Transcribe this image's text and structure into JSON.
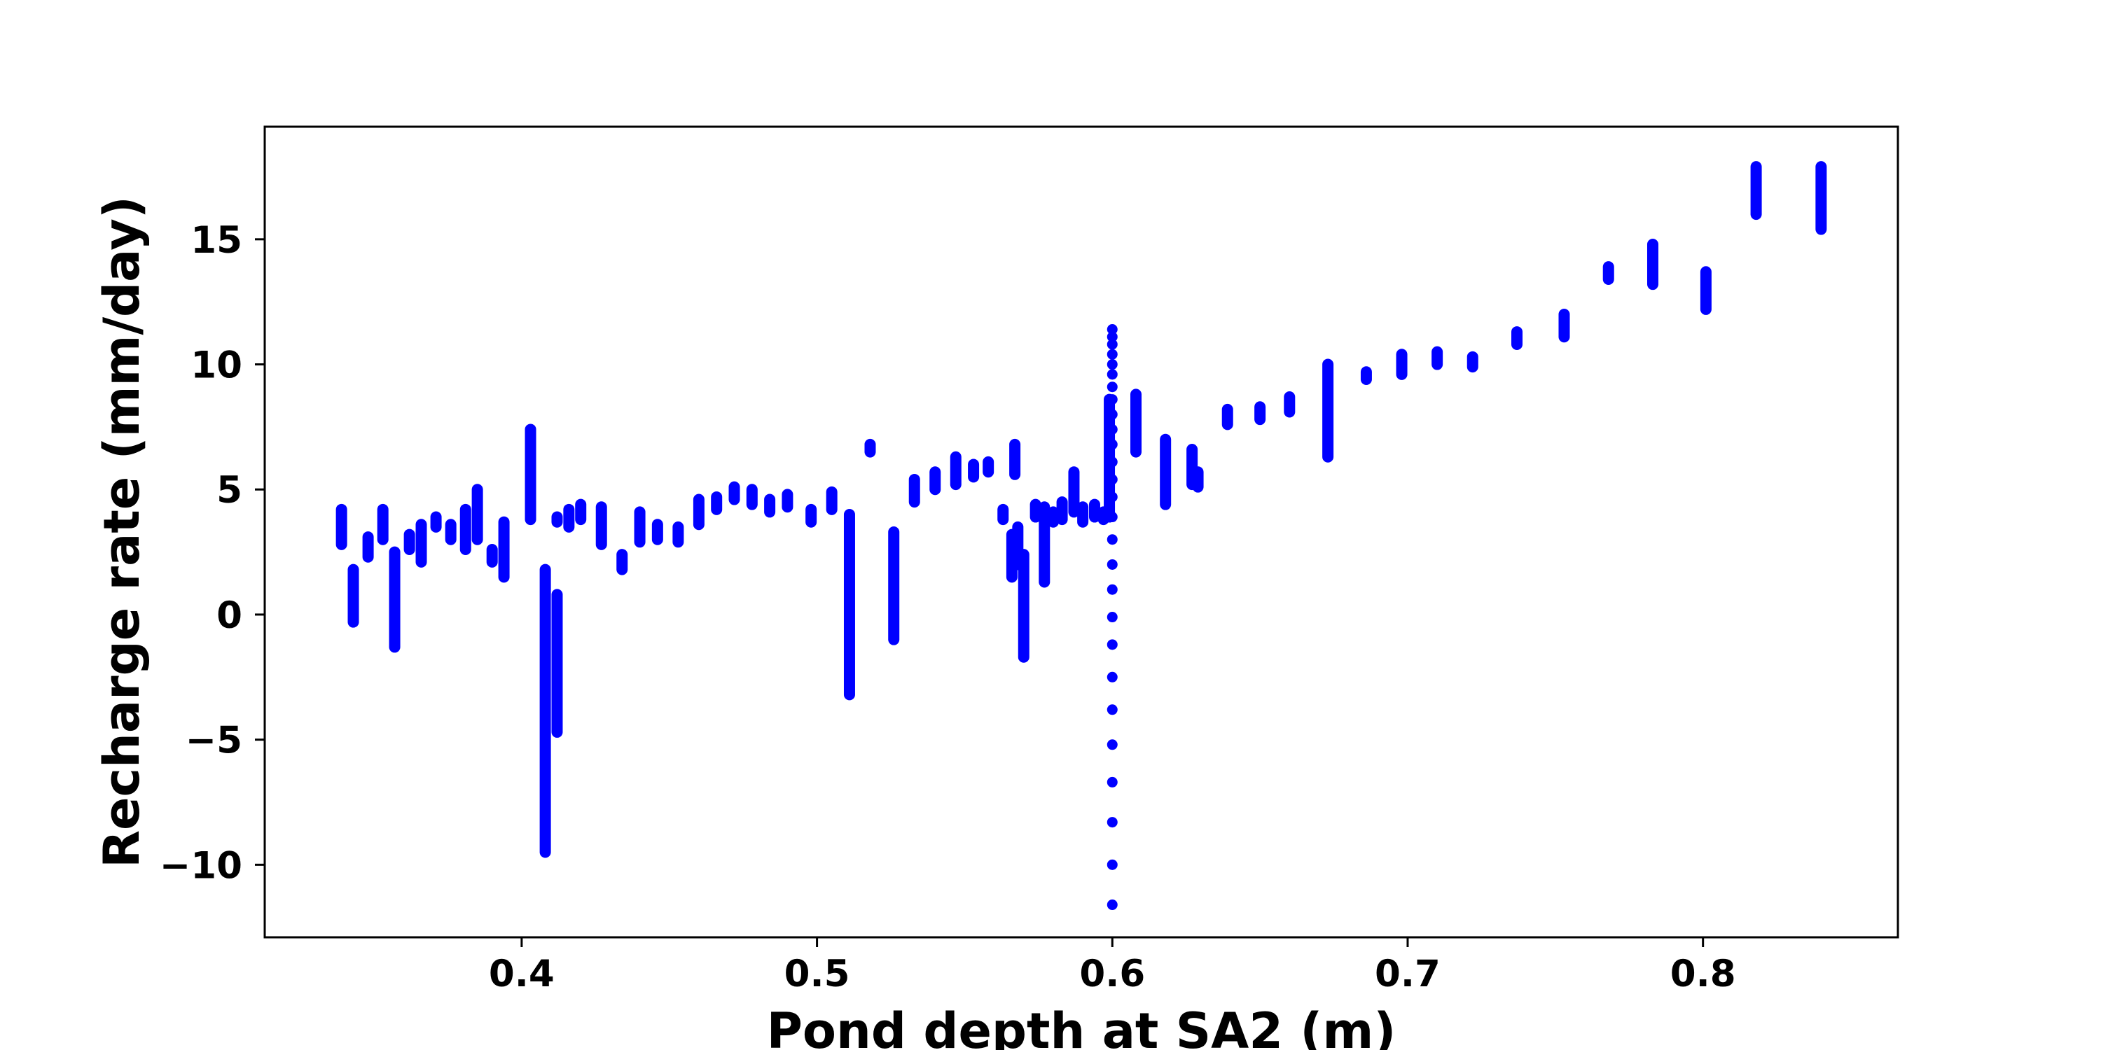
{
  "chart_data": {
    "type": "scatter",
    "xlabel": "Pond depth at SA2 (m)",
    "ylabel": "Recharge rate (mm/day)",
    "xlim": [
      0.313,
      0.866
    ],
    "ylim": [
      -12.9,
      19.5
    ],
    "x_ticks": [
      {
        "value": 0.4,
        "label": "0.4"
      },
      {
        "value": 0.5,
        "label": "0.5"
      },
      {
        "value": 0.6,
        "label": "0.6"
      },
      {
        "value": 0.7,
        "label": "0.7"
      },
      {
        "value": 0.8,
        "label": "0.8"
      }
    ],
    "y_ticks": [
      {
        "value": -10,
        "label": "−10"
      },
      {
        "value": -5,
        "label": "−5"
      },
      {
        "value": 0,
        "label": "0"
      },
      {
        "value": 5,
        "label": "5"
      },
      {
        "value": 10,
        "label": "10"
      },
      {
        "value": 15,
        "label": "15"
      }
    ],
    "grid": false,
    "legend": "none",
    "marker_color": "#0000ff",
    "series": [
      {
        "values": [
          {
            "x": 0.339,
            "y0": 2.8,
            "y1": 4.2
          },
          {
            "x": 0.343,
            "y0": -0.3,
            "y1": 1.8
          },
          {
            "x": 0.348,
            "y0": 2.3,
            "y1": 3.1
          },
          {
            "x": 0.353,
            "y0": 3.0,
            "y1": 4.2
          },
          {
            "x": 0.357,
            "y0": -1.3,
            "y1": 2.5
          },
          {
            "x": 0.362,
            "y0": 2.6,
            "y1": 3.2
          },
          {
            "x": 0.366,
            "y0": 2.1,
            "y1": 3.6
          },
          {
            "x": 0.371,
            "y0": 3.5,
            "y1": 3.9
          },
          {
            "x": 0.376,
            "y0": 3.0,
            "y1": 3.6
          },
          {
            "x": 0.381,
            "y0": 2.6,
            "y1": 4.2
          },
          {
            "x": 0.385,
            "y0": 3.0,
            "y1": 5.0
          },
          {
            "x": 0.39,
            "y0": 2.1,
            "y1": 2.6
          },
          {
            "x": 0.394,
            "y0": 1.5,
            "y1": 3.7
          },
          {
            "x": 0.403,
            "y0": 3.8,
            "y1": 7.4
          },
          {
            "x": 0.408,
            "y0": -9.5,
            "y1": 1.8
          },
          {
            "x": 0.412,
            "y0": -4.7,
            "y1": 0.8
          },
          {
            "x": 0.412,
            "y0": 3.7,
            "y1": 3.9
          },
          {
            "x": 0.416,
            "y0": 3.5,
            "y1": 4.2
          },
          {
            "x": 0.42,
            "y0": 3.8,
            "y1": 4.4
          },
          {
            "x": 0.427,
            "y0": 2.8,
            "y1": 4.3
          },
          {
            "x": 0.434,
            "y0": 1.8,
            "y1": 2.4
          },
          {
            "x": 0.44,
            "y0": 2.9,
            "y1": 4.1
          },
          {
            "x": 0.446,
            "y0": 3.0,
            "y1": 3.6
          },
          {
            "x": 0.453,
            "y0": 2.9,
            "y1": 3.5
          },
          {
            "x": 0.46,
            "y0": 3.6,
            "y1": 4.6
          },
          {
            "x": 0.466,
            "y0": 4.2,
            "y1": 4.7
          },
          {
            "x": 0.472,
            "y0": 4.6,
            "y1": 5.1
          },
          {
            "x": 0.478,
            "y0": 4.4,
            "y1": 5.0
          },
          {
            "x": 0.484,
            "y0": 4.1,
            "y1": 4.6
          },
          {
            "x": 0.49,
            "y0": 4.3,
            "y1": 4.8
          },
          {
            "x": 0.498,
            "y0": 3.7,
            "y1": 4.2
          },
          {
            "x": 0.505,
            "y0": 4.2,
            "y1": 4.9
          },
          {
            "x": 0.511,
            "y0": -3.2,
            "y1": 4.0
          },
          {
            "x": 0.518,
            "y0": 6.5,
            "y1": 6.8
          },
          {
            "x": 0.526,
            "y0": -1.0,
            "y1": 3.3
          },
          {
            "x": 0.533,
            "y0": 4.5,
            "y1": 5.4
          },
          {
            "x": 0.54,
            "y0": 5.0,
            "y1": 5.7
          },
          {
            "x": 0.547,
            "y0": 5.2,
            "y1": 6.3
          },
          {
            "x": 0.553,
            "y0": 5.5,
            "y1": 6.0
          },
          {
            "x": 0.558,
            "y0": 5.7,
            "y1": 6.1
          },
          {
            "x": 0.563,
            "y0": 3.8,
            "y1": 4.2
          },
          {
            "x": 0.566,
            "y0": 1.5,
            "y1": 3.2
          },
          {
            "x": 0.567,
            "y0": 5.6,
            "y1": 6.8
          },
          {
            "x": 0.568,
            "y0": 2.0,
            "y1": 3.5
          },
          {
            "x": 0.57,
            "y0": -1.7,
            "y1": 2.4
          },
          {
            "x": 0.574,
            "y0": 3.9,
            "y1": 4.4
          },
          {
            "x": 0.577,
            "y0": 1.3,
            "y1": 4.3
          },
          {
            "x": 0.58,
            "y0": 3.7,
            "y1": 4.1
          },
          {
            "x": 0.583,
            "y0": 3.8,
            "y1": 4.5
          },
          {
            "x": 0.587,
            "y0": 4.1,
            "y1": 5.7
          },
          {
            "x": 0.59,
            "y0": 3.7,
            "y1": 4.3
          },
          {
            "x": 0.594,
            "y0": 3.9,
            "y1": 4.4
          },
          {
            "x": 0.597,
            "y0": 3.8,
            "y1": 4.1
          },
          {
            "x": 0.599,
            "y0": 3.9,
            "y1": 8.6
          },
          {
            "x": 0.608,
            "y0": 6.5,
            "y1": 8.8
          },
          {
            "x": 0.618,
            "y0": 4.4,
            "y1": 7.0
          },
          {
            "x": 0.627,
            "y0": 5.2,
            "y1": 6.6
          },
          {
            "x": 0.629,
            "y0": 5.1,
            "y1": 5.7
          },
          {
            "x": 0.639,
            "y0": 7.6,
            "y1": 8.2
          },
          {
            "x": 0.65,
            "y0": 7.8,
            "y1": 8.3
          },
          {
            "x": 0.66,
            "y0": 8.1,
            "y1": 8.7
          },
          {
            "x": 0.673,
            "y0": 6.3,
            "y1": 10.0
          },
          {
            "x": 0.686,
            "y0": 9.4,
            "y1": 9.7
          },
          {
            "x": 0.698,
            "y0": 9.6,
            "y1": 10.4
          },
          {
            "x": 0.71,
            "y0": 10.0,
            "y1": 10.5
          },
          {
            "x": 0.722,
            "y0": 9.9,
            "y1": 10.3
          },
          {
            "x": 0.737,
            "y0": 10.8,
            "y1": 11.3
          },
          {
            "x": 0.753,
            "y0": 11.1,
            "y1": 12.0
          },
          {
            "x": 0.768,
            "y0": 13.4,
            "y1": 13.9
          },
          {
            "x": 0.783,
            "y0": 13.2,
            "y1": 14.8
          },
          {
            "x": 0.801,
            "y0": 12.2,
            "y1": 13.7
          },
          {
            "x": 0.818,
            "y0": 16.0,
            "y1": 17.9
          },
          {
            "x": 0.84,
            "y0": 15.4,
            "y1": 17.9
          }
        ]
      },
      {
        "values": [
          {
            "x": 0.6,
            "y": -11.6
          },
          {
            "x": 0.6,
            "y": -10.0
          },
          {
            "x": 0.6,
            "y": -8.3
          },
          {
            "x": 0.6,
            "y": -6.7
          },
          {
            "x": 0.6,
            "y": -5.2
          },
          {
            "x": 0.6,
            "y": -3.8
          },
          {
            "x": 0.6,
            "y": -2.5
          },
          {
            "x": 0.6,
            "y": -1.2
          },
          {
            "x": 0.6,
            "y": -0.1
          },
          {
            "x": 0.6,
            "y": 1.0
          },
          {
            "x": 0.6,
            "y": 2.0
          },
          {
            "x": 0.6,
            "y": 3.0
          },
          {
            "x": 0.6,
            "y": 3.9
          },
          {
            "x": 0.6,
            "y": 4.7
          },
          {
            "x": 0.6,
            "y": 5.4
          },
          {
            "x": 0.6,
            "y": 6.1
          },
          {
            "x": 0.6,
            "y": 6.8
          },
          {
            "x": 0.6,
            "y": 7.4
          },
          {
            "x": 0.6,
            "y": 8.0
          },
          {
            "x": 0.6,
            "y": 8.6
          },
          {
            "x": 0.6,
            "y": 9.1
          },
          {
            "x": 0.6,
            "y": 9.6
          },
          {
            "x": 0.6,
            "y": 10.0
          },
          {
            "x": 0.6,
            "y": 10.4
          },
          {
            "x": 0.6,
            "y": 10.8
          },
          {
            "x": 0.6,
            "y": 11.1
          },
          {
            "x": 0.6,
            "y": 11.4
          }
        ]
      }
    ]
  }
}
